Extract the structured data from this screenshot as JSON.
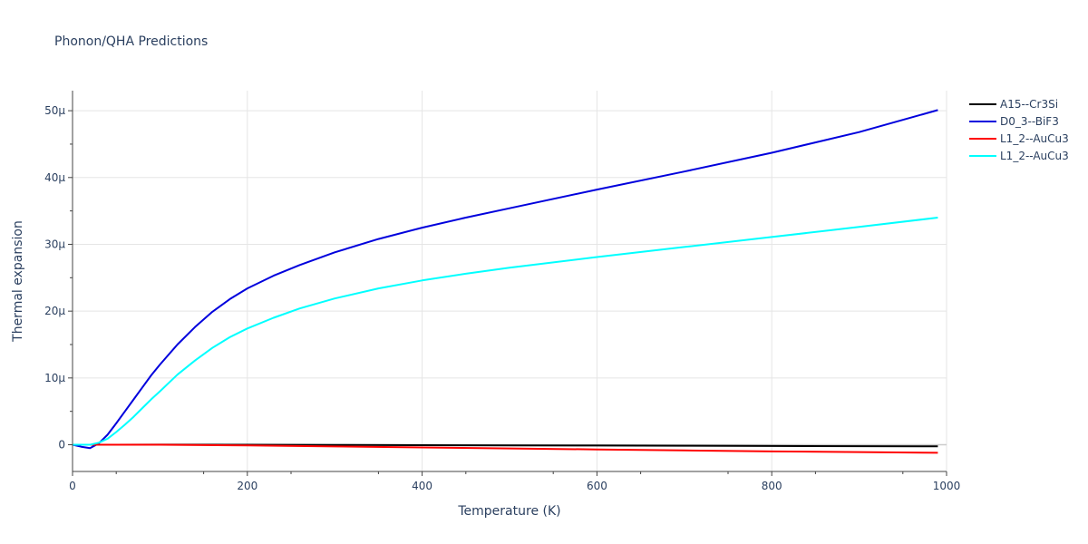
{
  "chart_data": {
    "type": "line",
    "title": "Phonon/QHA Predictions",
    "xlabel": "Temperature (K)",
    "ylabel": "Thermal expansion",
    "xlim": [
      0,
      1000
    ],
    "ylim": [
      -4,
      53
    ],
    "x_ticks": [
      0,
      200,
      400,
      600,
      800,
      1000
    ],
    "x_tick_labels": [
      "0",
      "200",
      "400",
      "600",
      "800",
      "1000"
    ],
    "y_ticks": [
      0,
      10,
      20,
      30,
      40,
      50
    ],
    "y_tick_labels": [
      "0",
      "10μ",
      "20μ",
      "30μ",
      "40μ",
      "50μ"
    ],
    "grid": true,
    "legend_position": "top-right",
    "series": [
      {
        "name": "A15--Cr3Si",
        "color": "#000000",
        "x": [
          0,
          100,
          200,
          300,
          400,
          500,
          600,
          700,
          800,
          900,
          990
        ],
        "y": [
          0,
          0.02,
          0.0,
          -0.03,
          -0.06,
          -0.09,
          -0.12,
          -0.15,
          -0.18,
          -0.21,
          -0.24
        ]
      },
      {
        "name": "D0_3--BiF3",
        "color": "#0000dd",
        "x": [
          0,
          10,
          20,
          30,
          40,
          50,
          60,
          70,
          80,
          90,
          100,
          120,
          140,
          160,
          180,
          200,
          230,
          260,
          300,
          350,
          400,
          450,
          500,
          600,
          700,
          800,
          900,
          990
        ],
        "y": [
          0,
          -0.3,
          -0.5,
          0.2,
          1.5,
          3.2,
          5.0,
          6.8,
          8.6,
          10.4,
          12.0,
          15.0,
          17.6,
          19.9,
          21.8,
          23.4,
          25.3,
          26.9,
          28.8,
          30.8,
          32.5,
          34.0,
          35.4,
          38.2,
          40.9,
          43.7,
          46.8,
          50.1
        ]
      },
      {
        "name": "L1_2--AuCu3",
        "color": "#ff0000",
        "x": [
          0,
          100,
          200,
          300,
          400,
          500,
          600,
          700,
          800,
          900,
          990
        ],
        "y": [
          0,
          0.0,
          -0.1,
          -0.25,
          -0.4,
          -0.55,
          -0.7,
          -0.85,
          -1.0,
          -1.1,
          -1.2
        ]
      },
      {
        "name": "L1_2--AuCu3",
        "color": "#00ffff",
        "x": [
          0,
          10,
          20,
          30,
          40,
          50,
          60,
          70,
          80,
          90,
          100,
          120,
          140,
          160,
          180,
          200,
          230,
          260,
          300,
          350,
          400,
          450,
          500,
          600,
          700,
          800,
          900,
          990
        ],
        "y": [
          0,
          0.0,
          0.0,
          0.3,
          0.9,
          1.9,
          3.0,
          4.2,
          5.5,
          6.8,
          8.0,
          10.5,
          12.6,
          14.5,
          16.1,
          17.4,
          19.0,
          20.4,
          21.9,
          23.4,
          24.6,
          25.6,
          26.5,
          28.1,
          29.6,
          31.1,
          32.6,
          34.0
        ]
      }
    ]
  }
}
